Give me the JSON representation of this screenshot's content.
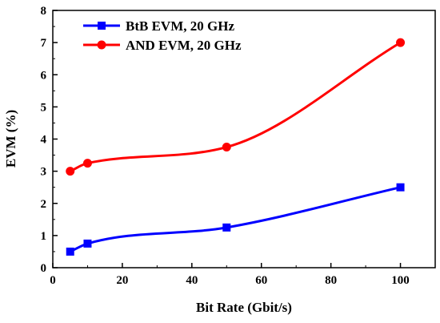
{
  "chart_data": {
    "type": "line",
    "xlabel": "Bit Rate (Gbit/s)",
    "ylabel": "EVM (%)",
    "xlim": [
      0,
      110
    ],
    "ylim": [
      0,
      8
    ],
    "xticks": [
      0,
      20,
      40,
      60,
      80,
      100
    ],
    "yticks": [
      0,
      1,
      2,
      3,
      4,
      5,
      6,
      7,
      8
    ],
    "grid": false,
    "legend_position": "top-left",
    "series": [
      {
        "name": "BtB EVM, 20 GHz",
        "color": "#0000ff",
        "marker": "square",
        "x": [
          5,
          10,
          50,
          100
        ],
        "y": [
          0.5,
          0.75,
          1.25,
          2.5
        ]
      },
      {
        "name": "AND EVM, 20 GHz",
        "color": "#ff0000",
        "marker": "circle",
        "x": [
          5,
          10,
          50,
          100
        ],
        "y": [
          3.0,
          3.25,
          3.75,
          7.0
        ]
      }
    ]
  }
}
